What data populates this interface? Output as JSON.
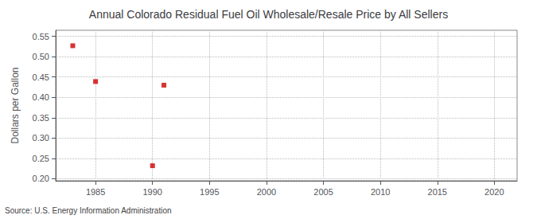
{
  "chart_data": {
    "type": "scatter",
    "title": "Annual Colorado Residual Fuel Oil Wholesale/Resale Price by All Sellers",
    "ylabel": "Dollars per Gallon",
    "source": "Source: U.S. Energy Information Administration",
    "x": [
      1983,
      1985,
      1990,
      1991
    ],
    "values": [
      0.527,
      0.439,
      0.232,
      0.43
    ],
    "color": "#cc0000",
    "marker": "square",
    "xlim": [
      1981.5,
      2022
    ],
    "ylim": [
      0.195,
      0.565
    ],
    "xticks": [
      1985,
      1990,
      1995,
      2000,
      2005,
      2010,
      2015,
      2020
    ],
    "yticks": [
      {
        "value": 0.2,
        "label": "0.20"
      },
      0.25,
      {
        "value": 0.3,
        "label": "0.30"
      },
      0.35,
      {
        "value": 0.4,
        "label": "0.40"
      },
      0.45,
      {
        "value": 0.5,
        "label": "0.50"
      },
      0.55
    ],
    "grid": true
  }
}
